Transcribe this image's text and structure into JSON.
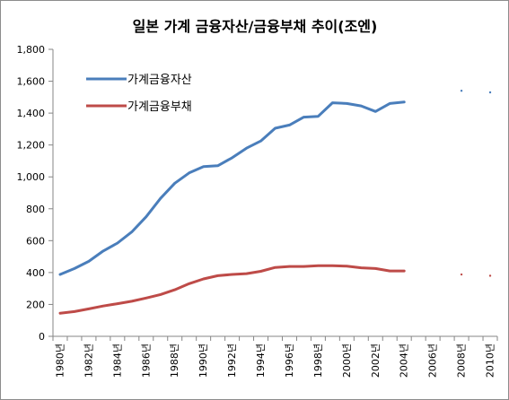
{
  "chart_data": {
    "type": "line",
    "title": "일본 가계 금융자산/금융부채 추이(조엔)",
    "xlabel": "",
    "ylabel": "",
    "ylim": [
      0,
      1800
    ],
    "y_ticks": [
      "0",
      "200",
      "400",
      "600",
      "800",
      "1,000",
      "1,200",
      "1,400",
      "1,600",
      "1,800"
    ],
    "x_tick_labels": [
      "1980년",
      "1982년",
      "1984년",
      "1986년",
      "1988년",
      "1990년",
      "1992년",
      "1994년",
      "1996년",
      "1998년",
      "2000년",
      "2002년",
      "2004년",
      "2006년",
      "2008년",
      "2010년"
    ],
    "x": [
      1980,
      1981,
      1982,
      1983,
      1984,
      1985,
      1986,
      1987,
      1988,
      1989,
      1990,
      1991,
      1992,
      1993,
      1994,
      1995,
      1996,
      1997,
      1998,
      1999,
      2000,
      2001,
      2002,
      2003,
      2004,
      2005,
      2006,
      2007,
      2008,
      2009,
      2010
    ],
    "grid": false,
    "legend_position": "top-left",
    "series": [
      {
        "name": "가계금융자산",
        "color": "#4a7ebb",
        "values": [
          388,
          425,
          470,
          535,
          585,
          655,
          750,
          865,
          960,
          1025,
          1065,
          1070,
          1120,
          1180,
          1225,
          1305,
          1325,
          1375,
          1380,
          1465,
          1460,
          1445,
          1410,
          1460,
          1470,
          null,
          null,
          null,
          1540,
          null,
          1530
        ]
      },
      {
        "name": "가계금융부채",
        "color": "#be4b48",
        "values": [
          145,
          155,
          172,
          190,
          205,
          220,
          240,
          262,
          292,
          330,
          360,
          380,
          388,
          393,
          408,
          432,
          438,
          438,
          443,
          443,
          440,
          430,
          425,
          410,
          410,
          null,
          null,
          null,
          388,
          null,
          380
        ]
      }
    ]
  }
}
